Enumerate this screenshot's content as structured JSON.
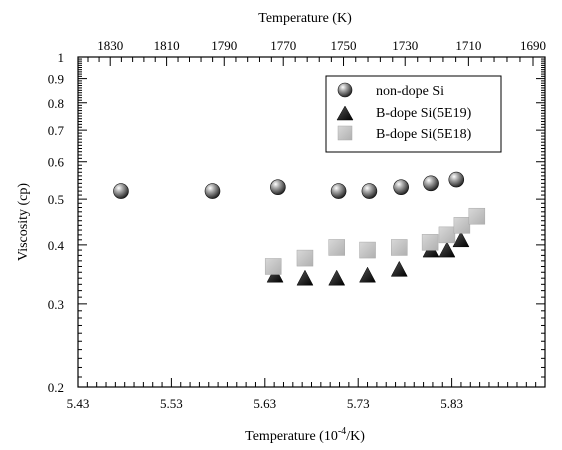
{
  "chart_data": {
    "type": "scatter",
    "title": "",
    "xlabel": "Temperature (10^-4/K)",
    "xlabel_parts": {
      "base": "Temperature (10",
      "exp": "-4",
      "tail": "/K)"
    },
    "ylabel": "Viscosity (cp)",
    "x2label": "Temperature (K)",
    "xlim": [
      5.43,
      5.93
    ],
    "ylim": [
      0.2,
      1.0
    ],
    "yscale": "log",
    "grid": false,
    "legend_position": "top-right",
    "x_ticks": [
      5.43,
      5.53,
      5.63,
      5.73,
      5.83
    ],
    "x_tick_labels": [
      "5.43",
      "5.53",
      "5.63",
      "5.73",
      "5.83"
    ],
    "x2_ticks": [
      1830,
      1810,
      1790,
      1770,
      1750,
      1730,
      1710,
      1690
    ],
    "x2_tick_labels": [
      "1830",
      "1810",
      "1790",
      "1770",
      "1750",
      "1730",
      "1710",
      "1690"
    ],
    "y_ticks": [
      0.2,
      0.3,
      0.4,
      0.5,
      0.6,
      0.7,
      0.8,
      0.9,
      1.0
    ],
    "y_tick_labels": [
      "0.2",
      "0.3",
      "0.4",
      "0.5",
      "0.6",
      "0.7",
      "0.8",
      "0.9",
      "1"
    ],
    "series": [
      {
        "name": "non-dope Si",
        "marker": "sphere",
        "color": "#555555",
        "x": [
          5.476,
          5.574,
          5.644,
          5.709,
          5.742,
          5.776,
          5.808,
          5.835
        ],
        "y": [
          0.52,
          0.52,
          0.53,
          0.52,
          0.52,
          0.53,
          0.54,
          0.55
        ]
      },
      {
        "name": "B-dope Si(5E19)",
        "marker": "triangle",
        "color": "#111111",
        "x": [
          5.641,
          5.673,
          5.707,
          5.74,
          5.774,
          5.808,
          5.825,
          5.84
        ],
        "y": [
          0.345,
          0.34,
          0.34,
          0.345,
          0.355,
          0.39,
          0.39,
          0.41
        ]
      },
      {
        "name": "B-dope Si(5E18)",
        "marker": "square",
        "color": "#c4c4c4",
        "x": [
          5.639,
          5.673,
          5.707,
          5.74,
          5.774,
          5.807,
          5.825,
          5.841,
          5.857
        ],
        "y": [
          0.36,
          0.375,
          0.395,
          0.39,
          0.395,
          0.405,
          0.42,
          0.44,
          0.46
        ]
      }
    ]
  }
}
